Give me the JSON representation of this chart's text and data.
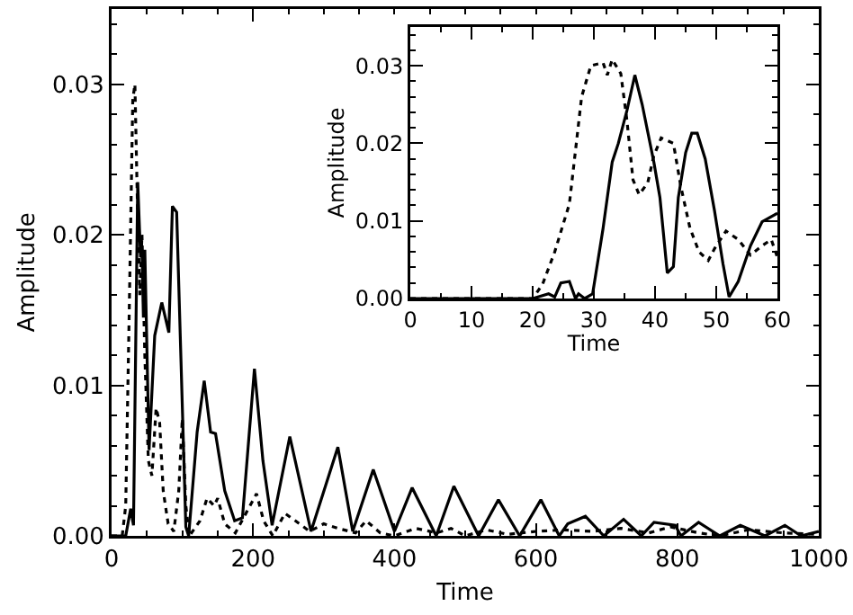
{
  "chart_data": [
    {
      "type": "line",
      "xlabel": "Time",
      "ylabel": "Amplitude",
      "xlim": [
        0,
        1000
      ],
      "ylim": [
        0,
        0.035
      ],
      "xticks": [
        0,
        200,
        400,
        600,
        800,
        1000
      ],
      "yticks": [
        {
          "value": 0,
          "label": "0.00"
        },
        {
          "value": 0.01,
          "label": "0.01"
        },
        {
          "value": 0.02,
          "label": "0.02"
        },
        {
          "value": 0.03,
          "label": "0.03"
        }
      ],
      "series": [
        {
          "color": "#000000",
          "line_style": "solid",
          "x": [
            0,
            20,
            27,
            31,
            37,
            41,
            43,
            45,
            47,
            53,
            61,
            71,
            81,
            86,
            92,
            105,
            109,
            121,
            131,
            140,
            147,
            160,
            174,
            185,
            202,
            214,
            227,
            252,
            282,
            320,
            341,
            370,
            400,
            425,
            459,
            484,
            519,
            547,
            577,
            607,
            633,
            645,
            670,
            696,
            724,
            749,
            767,
            797,
            805,
            830,
            860,
            889,
            924,
            952,
            975,
            1000
          ],
          "values": [
            0,
            0,
            0.0018,
            0.0007,
            0.0235,
            0.0185,
            0.019,
            0.0145,
            0.019,
            0.0057,
            0.0133,
            0.0155,
            0.0135,
            0.0219,
            0.0215,
            0.0006,
            0,
            0.0069,
            0.0103,
            0.0069,
            0.0068,
            0.003,
            0.001,
            0.0012,
            0.0111,
            0.005,
            0.0007,
            0.0066,
            0.0003,
            0.0059,
            0.0003,
            0.0044,
            0.0003,
            0.0032,
            0,
            0.0033,
            0,
            0.0024,
            0,
            0.0024,
            0,
            0.0008,
            0.0013,
            0,
            0.0011,
            0,
            0.0009,
            0.0007,
            0,
            0.0009,
            0,
            0.0007,
            0,
            0.0007,
            0,
            0.0003
          ]
        },
        {
          "color": "#000000",
          "line_style": "dotted",
          "x": [
            0,
            15,
            20,
            25,
            30,
            33,
            37,
            40,
            43,
            47,
            52,
            57,
            63,
            68,
            73,
            80,
            88,
            95,
            100,
            105,
            110,
            125,
            135,
            145,
            150,
            160,
            175,
            190,
            205,
            215,
            228,
            245,
            260,
            280,
            300,
            320,
            345,
            360,
            380,
            400,
            430,
            460,
            480,
            500,
            530,
            560,
            600,
            640,
            680,
            720,
            760,
            790,
            830,
            860,
            900,
            950,
            1000
          ],
          "values": [
            0,
            0,
            0.002,
            0.015,
            0.029,
            0.03,
            0.021,
            0.016,
            0.02,
            0.012,
            0.005,
            0.004,
            0.0085,
            0.0075,
            0.003,
            0.0008,
            0.0003,
            0.003,
            0.0078,
            0.002,
            0,
            0.001,
            0.0025,
            0.002,
            0.0025,
            0.0008,
            0.0002,
            0.0015,
            0.0028,
            0.001,
            0,
            0.0015,
            0.001,
            0.0003,
            0.0008,
            0.0005,
            0.0002,
            0.001,
            0.0002,
            0,
            0.0005,
            0.0002,
            0.0005,
            0,
            0.0004,
            0.0001,
            0.0003,
            0.0004,
            0.0003,
            0.0005,
            0.0002,
            0.0006,
            0.0002,
            0,
            0.0004,
            0.0002,
            0.0001
          ]
        }
      ]
    },
    {
      "type": "line",
      "xlabel": "Time",
      "ylabel": "Amplitude",
      "xlim": [
        0,
        60
      ],
      "ylim": [
        0,
        0.035
      ],
      "xticks": [
        0,
        10,
        20,
        30,
        40,
        50,
        60
      ],
      "yticks": [
        {
          "value": 0,
          "label": "0.00"
        },
        {
          "value": 0.01,
          "label": "0.01"
        },
        {
          "value": 0.02,
          "label": "0.02"
        },
        {
          "value": 0.03,
          "label": "0.03"
        }
      ],
      "series": [
        {
          "color": "#000000",
          "line_style": "solid",
          "x": [
            0,
            20,
            22.6,
            23.6,
            24.6,
            26,
            27,
            27.5,
            28.5,
            29.8,
            31.5,
            33,
            34,
            35.4,
            36.7,
            37.9,
            39.8,
            40.8,
            42,
            43,
            43.8,
            45,
            46,
            46.9,
            48.2,
            49.7,
            51.1,
            52.1,
            53.6,
            55.6,
            57.5,
            60
          ],
          "values": [
            0,
            0,
            0.0006,
            0.0002,
            0.002,
            0.0022,
            0,
            0.0006,
            0,
            0.0006,
            0.009,
            0.0176,
            0.02,
            0.0242,
            0.0288,
            0.025,
            0.0176,
            0.013,
            0.0033,
            0.0041,
            0.013,
            0.0188,
            0.0213,
            0.0213,
            0.018,
            0.0114,
            0.0045,
            0.0002,
            0.0022,
            0.0068,
            0.0099,
            0.011
          ]
        },
        {
          "color": "#000000",
          "line_style": "dotted",
          "x": [
            0,
            20,
            21.6,
            23.6,
            26,
            28,
            29.5,
            31.5,
            32.2,
            33,
            34.4,
            35.4,
            36.4,
            37.4,
            38.8,
            39.8,
            41,
            43,
            44.2,
            45.7,
            47.2,
            48.7,
            49.7,
            51.6,
            53.6,
            55.6,
            57.5,
            59,
            60
          ],
          "values": [
            0,
            0,
            0.0018,
            0.006,
            0.0122,
            0.026,
            0.03,
            0.0304,
            0.0288,
            0.0308,
            0.029,
            0.023,
            0.0153,
            0.0134,
            0.0149,
            0.0184,
            0.0207,
            0.02,
            0.0145,
            0.0091,
            0.006,
            0.0049,
            0.0064,
            0.0087,
            0.0076,
            0.0056,
            0.0068,
            0.0076,
            0.0053
          ]
        }
      ]
    }
  ]
}
